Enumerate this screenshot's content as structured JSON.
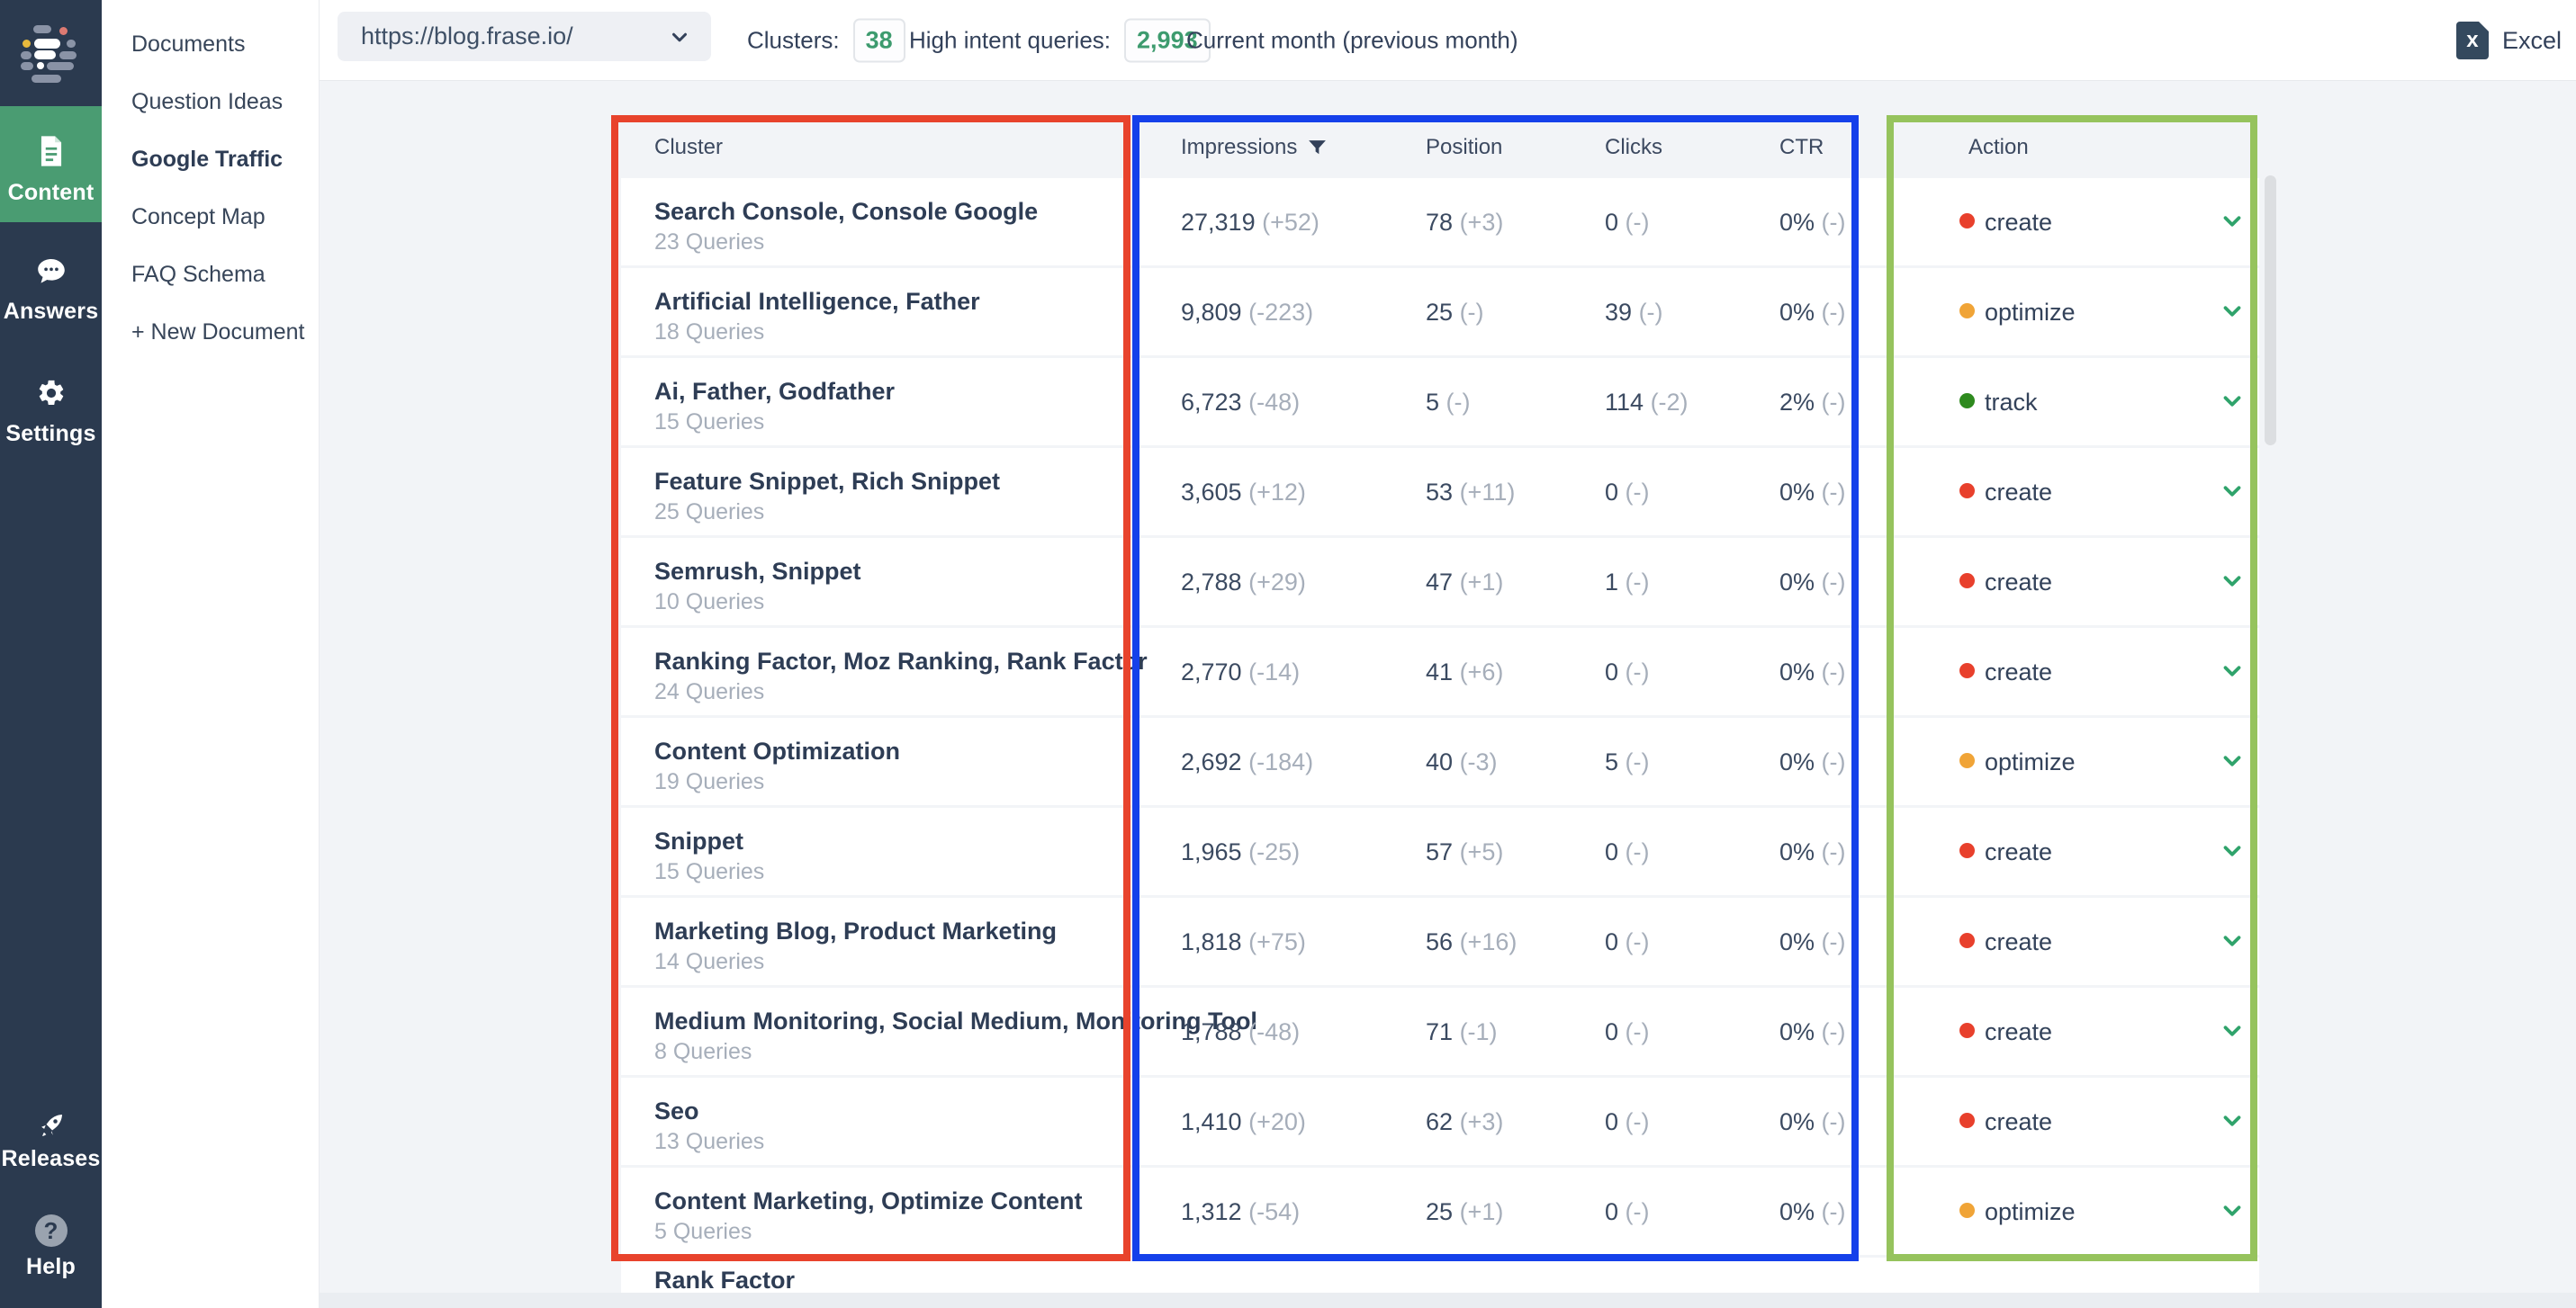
{
  "left_rail": {
    "nav": [
      {
        "label": "Content",
        "active": true
      },
      {
        "label": "Answers",
        "active": false
      },
      {
        "label": "Settings",
        "active": false
      }
    ],
    "footer": [
      {
        "label": "Releases"
      },
      {
        "label": "Help"
      }
    ],
    "help_glyph": "?"
  },
  "sidebar": {
    "items": [
      "Documents",
      "Question Ideas",
      "Google Traffic",
      "Concept Map",
      "FAQ Schema",
      "+ New Document"
    ],
    "active_item": "Google Traffic"
  },
  "topbar": {
    "url_select_value": "https://blog.frase.io/",
    "clusters_label": "Clusters:",
    "clusters_value": "38",
    "high_intent_label": "High intent queries:",
    "high_intent_value": "2,993",
    "period": "Current month (previous month)",
    "export_label": "Excel",
    "excel_icon_letter": "x"
  },
  "table": {
    "columns": {
      "cluster": "Cluster",
      "impressions": "Impressions",
      "position": "Position",
      "clicks": "Clicks",
      "ctr": "CTR",
      "action": "Action"
    },
    "rows": [
      {
        "cluster": "Search Console, Console Google",
        "queries": "23 Queries",
        "impressions": "27,319",
        "impressions_delta": "(+52)",
        "position": "78",
        "position_delta": "(+3)",
        "clicks": "0",
        "clicks_delta": "(-)",
        "ctr": "0%",
        "ctr_delta": "(-)",
        "action": "create"
      },
      {
        "cluster": "Artificial Intelligence, Father",
        "queries": "18 Queries",
        "impressions": "9,809",
        "impressions_delta": "(-223)",
        "position": "25",
        "position_delta": "(-)",
        "clicks": "39",
        "clicks_delta": "(-)",
        "ctr": "0%",
        "ctr_delta": "(-)",
        "action": "optimize"
      },
      {
        "cluster": "Ai, Father, Godfather",
        "queries": "15 Queries",
        "impressions": "6,723",
        "impressions_delta": "(-48)",
        "position": "5",
        "position_delta": "(-)",
        "clicks": "114",
        "clicks_delta": "(-2)",
        "ctr": "2%",
        "ctr_delta": "(-)",
        "action": "track"
      },
      {
        "cluster": "Feature Snippet, Rich Snippet",
        "queries": "25 Queries",
        "impressions": "3,605",
        "impressions_delta": "(+12)",
        "position": "53",
        "position_delta": "(+11)",
        "clicks": "0",
        "clicks_delta": "(-)",
        "ctr": "0%",
        "ctr_delta": "(-)",
        "action": "create"
      },
      {
        "cluster": "Semrush, Snippet",
        "queries": "10 Queries",
        "impressions": "2,788",
        "impressions_delta": "(+29)",
        "position": "47",
        "position_delta": "(+1)",
        "clicks": "1",
        "clicks_delta": "(-)",
        "ctr": "0%",
        "ctr_delta": "(-)",
        "action": "create"
      },
      {
        "cluster": "Ranking Factor, Moz Ranking, Rank Factor",
        "queries": "24 Queries",
        "impressions": "2,770",
        "impressions_delta": "(-14)",
        "position": "41",
        "position_delta": "(+6)",
        "clicks": "0",
        "clicks_delta": "(-)",
        "ctr": "0%",
        "ctr_delta": "(-)",
        "action": "create"
      },
      {
        "cluster": "Content Optimization",
        "queries": "19 Queries",
        "impressions": "2,692",
        "impressions_delta": "(-184)",
        "position": "40",
        "position_delta": "(-3)",
        "clicks": "5",
        "clicks_delta": "(-)",
        "ctr": "0%",
        "ctr_delta": "(-)",
        "action": "optimize"
      },
      {
        "cluster": "Snippet",
        "queries": "15 Queries",
        "impressions": "1,965",
        "impressions_delta": "(-25)",
        "position": "57",
        "position_delta": "(+5)",
        "clicks": "0",
        "clicks_delta": "(-)",
        "ctr": "0%",
        "ctr_delta": "(-)",
        "action": "create"
      },
      {
        "cluster": "Marketing Blog, Product Marketing",
        "queries": "14 Queries",
        "impressions": "1,818",
        "impressions_delta": "(+75)",
        "position": "56",
        "position_delta": "(+16)",
        "clicks": "0",
        "clicks_delta": "(-)",
        "ctr": "0%",
        "ctr_delta": "(-)",
        "action": "create"
      },
      {
        "cluster": "Medium Monitoring, Social Medium, Monitoring Tool",
        "queries": "8 Queries",
        "impressions": "1,788",
        "impressions_delta": "(-48)",
        "position": "71",
        "position_delta": "(-1)",
        "clicks": "0",
        "clicks_delta": "(-)",
        "ctr": "0%",
        "ctr_delta": "(-)",
        "action": "create"
      },
      {
        "cluster": "Seo",
        "queries": "13 Queries",
        "impressions": "1,410",
        "impressions_delta": "(+20)",
        "position": "62",
        "position_delta": "(+3)",
        "clicks": "0",
        "clicks_delta": "(-)",
        "ctr": "0%",
        "ctr_delta": "(-)",
        "action": "create"
      },
      {
        "cluster": "Content Marketing, Optimize Content",
        "queries": "5 Queries",
        "impressions": "1,312",
        "impressions_delta": "(-54)",
        "position": "25",
        "position_delta": "(+1)",
        "clicks": "0",
        "clicks_delta": "(-)",
        "ctr": "0%",
        "ctr_delta": "(-)",
        "action": "optimize"
      }
    ],
    "partial_row": {
      "cluster": "Rank Factor"
    }
  },
  "colors": {
    "rail_navy": "#2b3a4f",
    "accent_green": "#4a9c72",
    "badge_green": "#3d9b6e",
    "highlight_red": "#e8432c",
    "highlight_blue": "#1540ea",
    "highlight_green": "#96c35d",
    "chevron_green": "#2fa36b",
    "action": {
      "create": "#e8402c",
      "optimize": "#f0a437",
      "track": "#2e8a1e"
    }
  }
}
